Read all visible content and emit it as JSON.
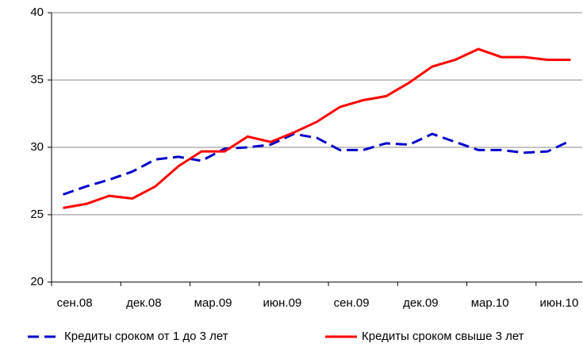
{
  "chart_data": {
    "type": "line",
    "categories": [
      "сен.08",
      null,
      null,
      "дек.08",
      null,
      null,
      "мар.09",
      null,
      null,
      "июн.09",
      null,
      null,
      "сен.09",
      null,
      null,
      "дек.09",
      null,
      null,
      "мар.10",
      null,
      null,
      "июн.10",
      null
    ],
    "series": [
      {
        "name": "Кредиты сроком от 1 до 3 лет",
        "color": "#0000cc",
        "dashed": true,
        "values": [
          26.5,
          27.1,
          27.6,
          28.2,
          29.1,
          29.3,
          29.0,
          29.9,
          30.0,
          30.2,
          31.0,
          30.7,
          29.8,
          29.8,
          30.3,
          30.2,
          31.0,
          30.4,
          29.8,
          29.8,
          29.6,
          29.7,
          30.5
        ]
      },
      {
        "name": "Кредиты сроком свыше 3 лет",
        "color": "#ff0000",
        "dashed": false,
        "values": [
          25.5,
          25.8,
          26.4,
          26.2,
          27.1,
          28.6,
          29.7,
          29.7,
          30.8,
          30.4,
          31.1,
          31.9,
          33.0,
          33.5,
          33.8,
          34.8,
          36.0,
          36.5,
          37.3,
          36.7,
          36.7,
          36.5,
          36.5
        ]
      }
    ],
    "ylim": [
      20,
      40
    ],
    "yticks": [
      20,
      25,
      30,
      35,
      40
    ],
    "grid": true
  }
}
